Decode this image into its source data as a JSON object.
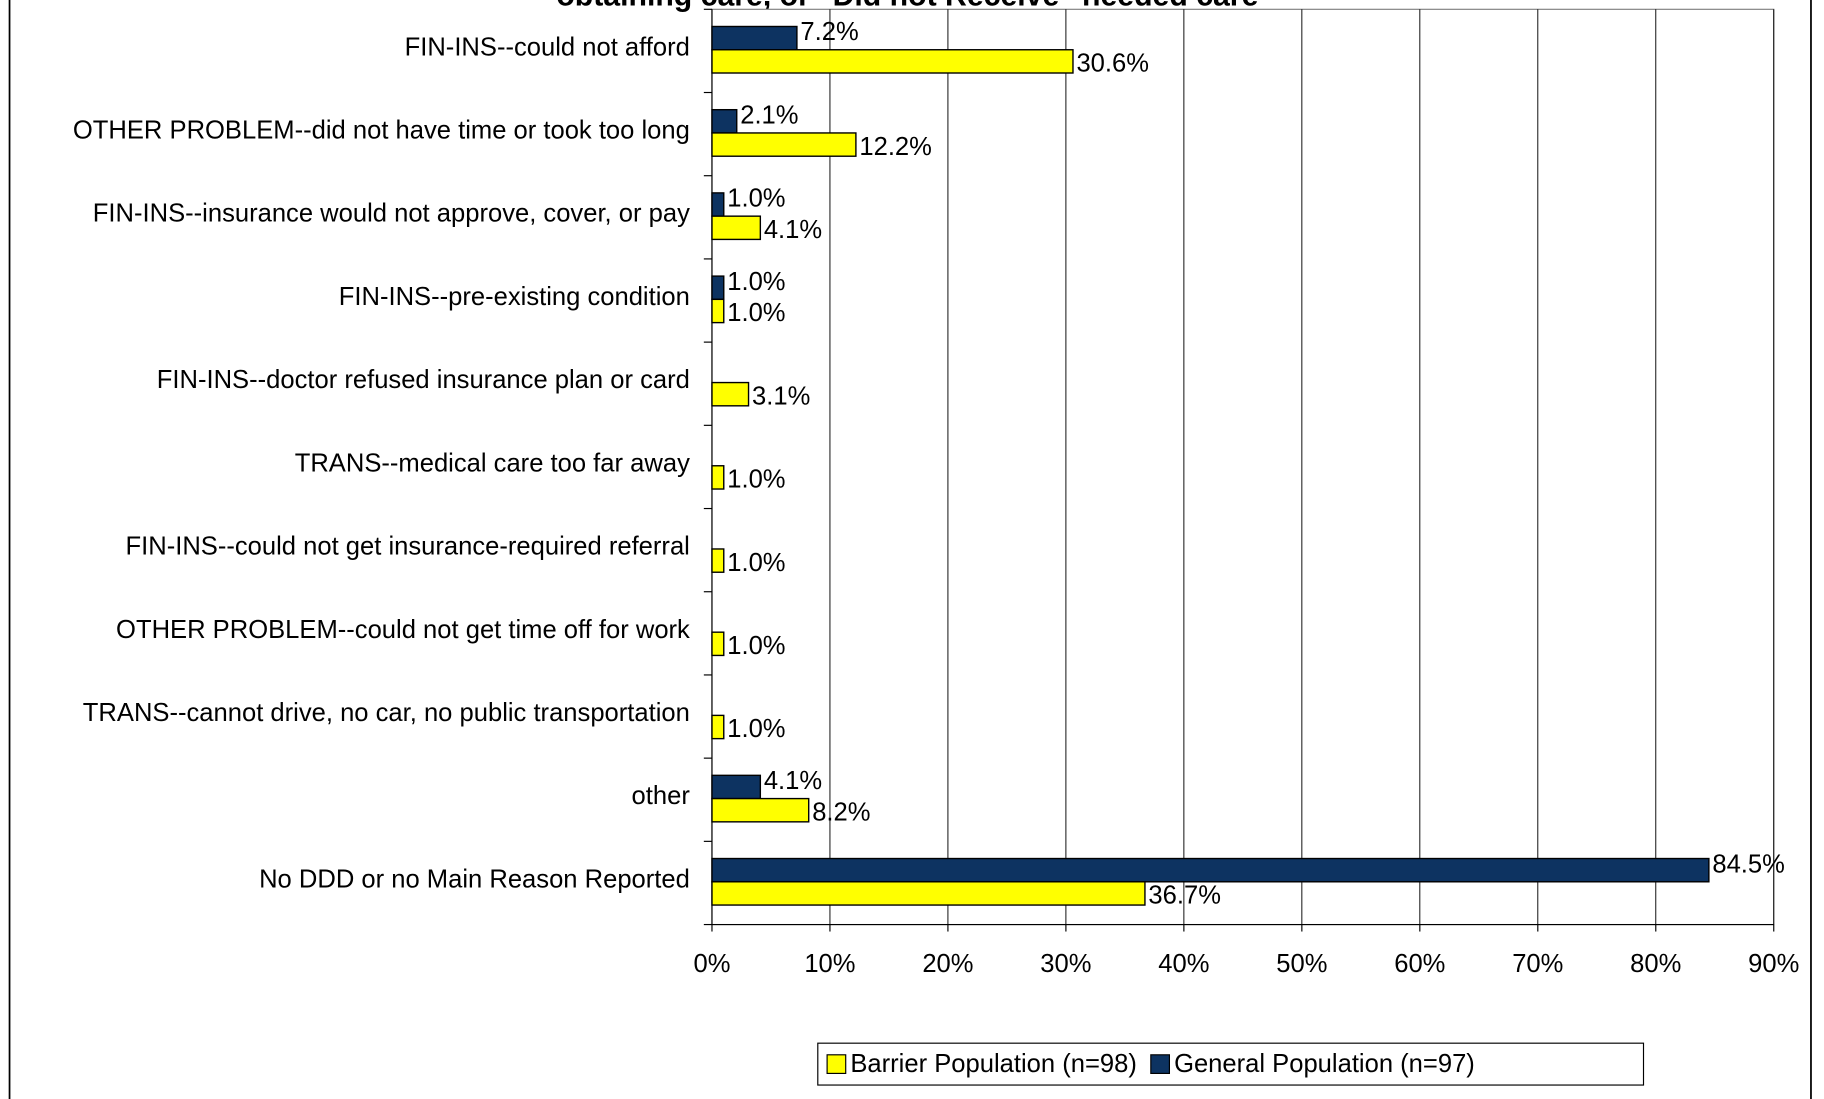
{
  "chart_data": {
    "type": "hbar",
    "title": "obtaining care, or \"Did not Receive\" needed care",
    "categories": [
      "FIN-INS--could not afford",
      "OTHER PROBLEM--did not have time or took too long",
      "FIN-INS--insurance would not approve, cover, or pay",
      "FIN-INS--pre-existing condition",
      "FIN-INS--doctor refused insurance plan or card",
      "TRANS--medical care too far away",
      "FIN-INS--could not get insurance-required referral",
      "OTHER PROBLEM--could not get time off for work",
      "TRANS--cannot drive, no car, no public transportation",
      "other",
      "No DDD or no Main Reason Reported"
    ],
    "series": [
      {
        "name": "Barrier Population (n=98)",
        "color": "#ffff00",
        "values": [
          30.6,
          12.2,
          4.1,
          1.0,
          3.1,
          1.0,
          1.0,
          1.0,
          1.0,
          8.2,
          36.7
        ],
        "value_labels": [
          "30.6%",
          "12.2%",
          "4.1%",
          "1.0%",
          "3.1%",
          "1.0%",
          "1.0%",
          "1.0%",
          "1.0%",
          "8.2%",
          "36.7%"
        ]
      },
      {
        "name": "General Population (n=97)",
        "color": "#0d3361",
        "values": [
          7.2,
          2.1,
          1.0,
          1.0,
          null,
          null,
          null,
          null,
          null,
          4.1,
          84.5
        ],
        "value_labels": [
          "7.2%",
          "2.1%",
          "1.0%",
          "1.0%",
          null,
          null,
          null,
          null,
          null,
          "4.1%",
          "84.5%"
        ]
      }
    ],
    "xlim": [
      0,
      90
    ],
    "xticks": [
      {
        "value": 0,
        "label": "0%"
      },
      {
        "value": 10,
        "label": "10%"
      },
      {
        "value": 20,
        "label": "20%"
      },
      {
        "value": 30,
        "label": "30%"
      },
      {
        "value": 40,
        "label": "40%"
      },
      {
        "value": 50,
        "label": "50%"
      },
      {
        "value": 60,
        "label": "60%"
      },
      {
        "value": 70,
        "label": "70%"
      },
      {
        "value": 80,
        "label": "80%"
      },
      {
        "value": 90,
        "label": "90%"
      }
    ],
    "grid": true,
    "legend": "bottom"
  }
}
